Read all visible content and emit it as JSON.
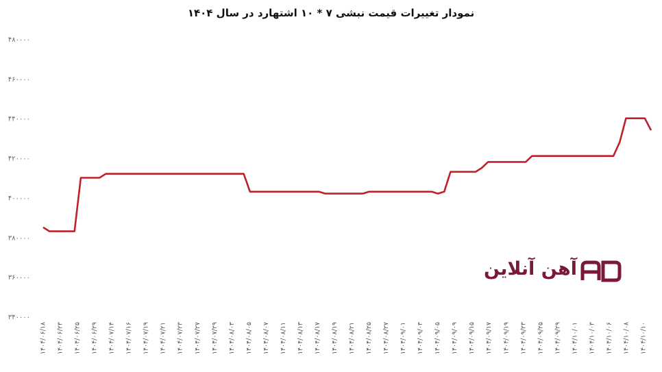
{
  "chart_data": {
    "type": "line",
    "title": "نمودار تغییرات قیمت نبشی ۷ * ۱۰ اشتهارد در سال ۱۴۰۴",
    "xlabel": "",
    "ylabel": "",
    "ylim": [
      340000,
      480000
    ],
    "yticks": [
      340000,
      360000,
      380000,
      400000,
      420000,
      440000,
      460000,
      480000
    ],
    "ytick_labels": [
      "۳۴۰۰۰۰",
      "۳۶۰۰۰۰",
      "۳۸۰۰۰۰",
      "۴۰۰۰۰۰",
      "۴۲۰۰۰۰",
      "۴۴۰۰۰۰",
      "۴۶۰۰۰۰",
      "۴۸۰۰۰۰"
    ],
    "grid": false,
    "legend": "none",
    "color": "#c0202a",
    "x_labels": [
      "۱۴۰۴/۰۶/۱۸",
      "۱۴۰۴/۰۶/۲۳",
      "۱۴۰۴/۰۶/۲۵",
      "۱۴۰۴/۰۶/۲۹",
      "۱۴۰۴/۰۷/۱۴",
      "۱۴۰۴/۰۷/۱۶",
      "۱۴۰۴/۰۷/۱۹",
      "۱۴۰۴/۰۷/۲۱",
      "۱۴۰۴/۰۷/۲۳",
      "۱۴۰۴/۰۷/۲۷",
      "۱۴۰۴/۰۷/۲۹",
      "۱۴۰۴/۰۸/۰۳",
      "۱۴۰۴/۰۸/۰۵",
      "۱۴۰۴/۰۸/۰۷",
      "۱۴۰۴/۰۸/۱۱",
      "۱۴۰۴/۰۸/۱۳",
      "۱۴۰۴/۰۸/۱۷",
      "۱۴۰۴/۰۸/۱۹",
      "۱۴۰۴/۰۸/۲۱",
      "۱۴۰۴/۰۸/۲۵",
      "۱۴۰۴/۰۸/۲۷",
      "۱۴۰۴/۰۹/۰۱",
      "۱۴۰۴/۰۹/۰۳",
      "۱۴۰۴/۰۹/۰۵",
      "۱۴۰۴/۰۹/۰۹",
      "۱۴۰۴/۰۹/۱۵",
      "۱۴۰۴/۰۹/۱۷",
      "۱۴۰۴/۰۹/۱۹",
      "۱۴۰۴/۰۹/۲۳",
      "۱۴۰۴/۰۹/۲۵",
      "۱۴۰۴/۰۹/۲۹",
      "۱۴۰۴/۱۰/۰۱",
      "۱۴۰۴/۱۰/۰۳",
      "۱۴۰۴/۱۰/۰۶",
      "۱۴۰۴/۱۰/۰۸",
      "۱۴۰۴/۱۰/۱۰"
    ],
    "values": [
      385000,
      383000,
      383000,
      383000,
      383000,
      383000,
      410000,
      410000,
      410000,
      410000,
      412000,
      412000,
      412000,
      412000,
      412000,
      412000,
      412000,
      412000,
      412000,
      412000,
      412000,
      412000,
      412000,
      412000,
      412000,
      412000,
      412000,
      412000,
      412000,
      412000,
      412000,
      412000,
      412000,
      403000,
      403000,
      403000,
      403000,
      403000,
      403000,
      403000,
      403000,
      403000,
      403000,
      403000,
      403000,
      402000,
      402000,
      402000,
      402000,
      402000,
      402000,
      402000,
      403000,
      403000,
      403000,
      403000,
      403000,
      403000,
      403000,
      403000,
      403000,
      403000,
      403000,
      402000,
      403000,
      413000,
      413000,
      413000,
      413000,
      413000,
      415000,
      418000,
      418000,
      418000,
      418000,
      418000,
      418000,
      418000,
      421000,
      421000,
      421000,
      421000,
      421000,
      421000,
      421000,
      421000,
      421000,
      421000,
      421000,
      421000,
      421000,
      421000,
      428000,
      440000,
      440000,
      440000,
      440000,
      434000
    ]
  },
  "logo": {
    "text": "آهن آنلاین",
    "mark_icon": "ahanonline-logo-mark",
    "color": "#7a1838"
  }
}
